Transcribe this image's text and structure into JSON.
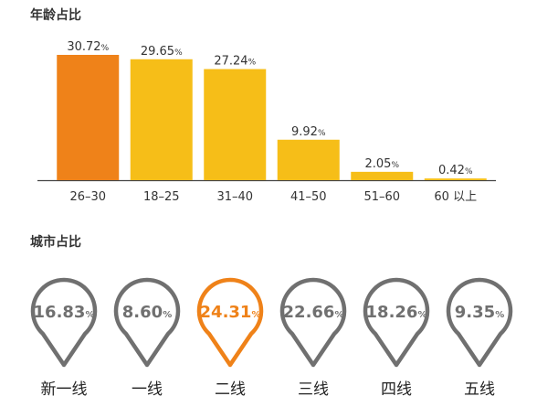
{
  "sections": {
    "age_title": "年龄占比",
    "city_title": "城市占比"
  },
  "colors": {
    "highlight": "#ef8219",
    "bar": "#f6be18",
    "pin": "#707070",
    "axis": "#444444",
    "text": "#333333"
  },
  "chart_data": [
    {
      "type": "bar",
      "title": "年龄占比",
      "categories": [
        "26–30",
        "18–25",
        "31–40",
        "41–50",
        "51–60",
        "60 以上"
      ],
      "values": [
        30.72,
        29.65,
        27.24,
        9.92,
        2.05,
        0.42
      ],
      "value_labels": [
        "30.72",
        "29.65",
        "27.24",
        "9.92",
        "2.05",
        "0.42"
      ],
      "unit": "%",
      "highlight_index": 0,
      "grid": false,
      "legend": "none"
    },
    {
      "type": "pin-markers",
      "title": "城市占比",
      "categories": [
        "新一线",
        "一线",
        "二线",
        "三线",
        "四线",
        "五线"
      ],
      "values": [
        16.83,
        8.6,
        24.31,
        22.66,
        18.26,
        9.35
      ],
      "value_labels": [
        "16.83",
        "8.60",
        "24.31",
        "22.66",
        "18.26",
        "9.35"
      ],
      "unit": "%",
      "highlight_index": 2
    }
  ]
}
